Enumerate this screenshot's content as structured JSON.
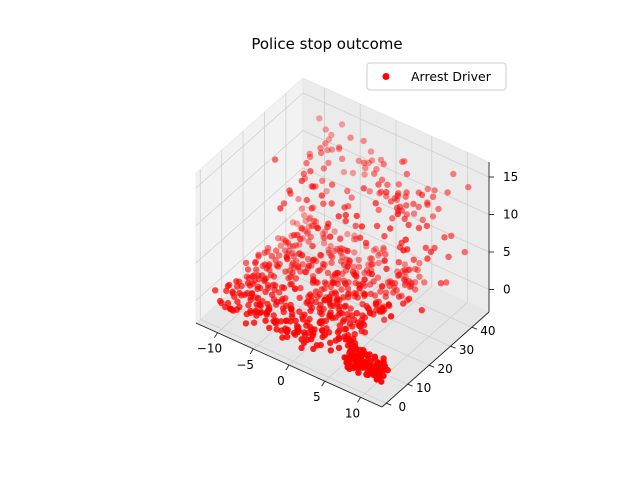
{
  "chart_data": {
    "type": "scatter",
    "projection": "3d",
    "title": "Police stop outcome",
    "xlabel": "",
    "ylabel": "",
    "zlabel": "",
    "xlim": [
      -13,
      13
    ],
    "ylim": [
      -2,
      48
    ],
    "zlim": [
      -3,
      17
    ],
    "xticks": [
      -10,
      -5,
      0,
      5,
      10
    ],
    "yticks": [
      0,
      10,
      20,
      30,
      40
    ],
    "zticks": [
      0,
      5,
      10,
      15
    ],
    "grid": true,
    "legend_position": "top-right",
    "series": [
      {
        "name": "Arrest Driver",
        "color": "#ff0000",
        "marker": "circle",
        "clusters": [
          {
            "x_range": [
              -12,
              6
            ],
            "y_range": [
              0,
              44
            ],
            "z_range": [
              -1,
              1
            ],
            "count": 520
          },
          {
            "x_range": [
              7,
              12
            ],
            "y_range": [
              0,
              6
            ],
            "z_range": [
              -1,
              1
            ],
            "count": 110
          },
          {
            "x_range": [
              -9,
              11
            ],
            "y_range": [
              14,
              46
            ],
            "z_range": [
              8,
              15
            ],
            "count": 130
          },
          {
            "x_range": [
              -11,
              12
            ],
            "y_range": [
              8,
              44
            ],
            "z_range": [
              1,
              8
            ],
            "count": 40
          }
        ]
      }
    ]
  }
}
